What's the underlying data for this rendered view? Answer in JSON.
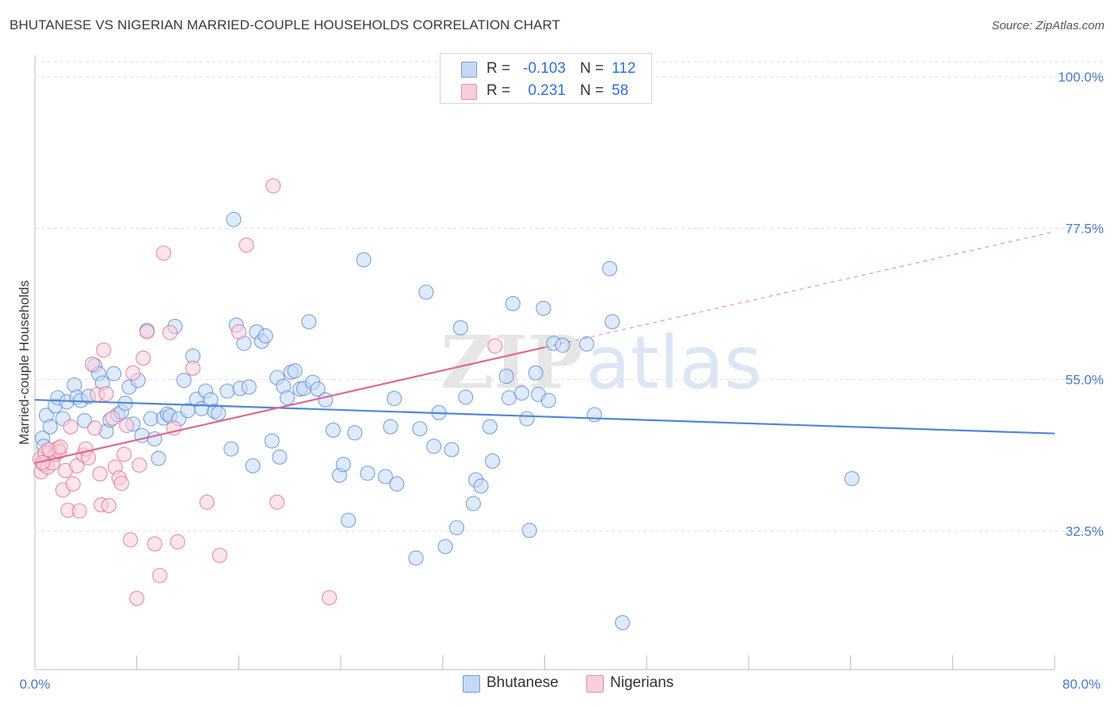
{
  "title": "BHUTANESE VS NIGERIAN MARRIED-COUPLE HOUSEHOLDS CORRELATION CHART",
  "source": "Source: ZipAtlas.com",
  "watermark": "ZIPatlas",
  "legend": {
    "rows": [
      {
        "r_label": "R =",
        "r_value": "-0.103",
        "n_label": "N =",
        "n_value": "112",
        "fill": "#c5d9f5",
        "stroke": "#6a9be0"
      },
      {
        "r_label": "R =",
        "r_value": "0.231",
        "n_label": "N =",
        "n_value": "58",
        "fill": "#f9cfdc",
        "stroke": "#e889a8"
      }
    ]
  },
  "bottom_legend": [
    {
      "label": "Bhutanese",
      "fill": "#c5d9f5",
      "stroke": "#6a9be0"
    },
    {
      "label": "Nigerians",
      "fill": "#f9cfdc",
      "stroke": "#e889a8"
    }
  ],
  "chart_data": {
    "type": "scatter",
    "title": "BHUTANESE VS NIGERIAN MARRIED-COUPLE HOUSEHOLDS CORRELATION CHART",
    "xlabel": "",
    "ylabel": "Married-couple Households",
    "xlim": [
      0,
      80
    ],
    "ylim": [
      10,
      103
    ],
    "x_tick_labels": [
      "0.0%",
      "80.0%"
    ],
    "y_tick_labels": [
      "100.0%",
      "77.5%",
      "55.0%",
      "32.5%"
    ],
    "y_ticks": [
      100,
      77.5,
      55,
      32.5
    ],
    "grid": true,
    "legend_position": "top-center",
    "series": [
      {
        "name": "Bhutanese",
        "color": "#4f86d6",
        "fill": "#c5d9f5",
        "trend": {
          "x": [
            0,
            80
          ],
          "y": [
            52.0,
            47.0
          ]
        },
        "points": [
          [
            0.6,
            46.3
          ],
          [
            0.9,
            49.7
          ],
          [
            1.2,
            48.0
          ],
          [
            1.6,
            51.1
          ],
          [
            1.8,
            52.3
          ],
          [
            2.2,
            49.2
          ],
          [
            2.5,
            51.7
          ],
          [
            3.1,
            54.2
          ],
          [
            3.3,
            52.4
          ],
          [
            3.6,
            51.9
          ],
          [
            3.9,
            48.9
          ],
          [
            4.2,
            52.5
          ],
          [
            4.7,
            57.1
          ],
          [
            5.0,
            55.9
          ],
          [
            5.3,
            54.5
          ],
          [
            5.6,
            47.3
          ],
          [
            5.9,
            49.0
          ],
          [
            6.2,
            55.9
          ],
          [
            6.5,
            49.8
          ],
          [
            6.8,
            50.2
          ],
          [
            7.1,
            51.5
          ],
          [
            7.4,
            53.9
          ],
          [
            7.7,
            48.4
          ],
          [
            8.1,
            54.9
          ],
          [
            8.4,
            46.7
          ],
          [
            8.8,
            62.3
          ],
          [
            9.1,
            49.2
          ],
          [
            9.4,
            46.2
          ],
          [
            9.7,
            43.3
          ],
          [
            10.1,
            49.3
          ],
          [
            10.4,
            49.9
          ],
          [
            10.6,
            49.6
          ],
          [
            11.0,
            62.9
          ],
          [
            11.3,
            49.2
          ],
          [
            11.7,
            54.9
          ],
          [
            12.0,
            50.4
          ],
          [
            12.4,
            58.5
          ],
          [
            12.7,
            52.1
          ],
          [
            13.1,
            50.7
          ],
          [
            13.4,
            53.3
          ],
          [
            13.8,
            52.0
          ],
          [
            14.1,
            50.3
          ],
          [
            14.4,
            50.0
          ],
          [
            15.1,
            53.3
          ],
          [
            15.4,
            44.7
          ],
          [
            15.6,
            78.8
          ],
          [
            15.8,
            63.1
          ],
          [
            16.1,
            53.7
          ],
          [
            16.4,
            60.4
          ],
          [
            16.8,
            53.9
          ],
          [
            17.1,
            42.2
          ],
          [
            17.4,
            62.1
          ],
          [
            17.8,
            60.7
          ],
          [
            18.1,
            61.5
          ],
          [
            18.6,
            45.9
          ],
          [
            19.0,
            55.3
          ],
          [
            19.2,
            43.5
          ],
          [
            19.5,
            54.0
          ],
          [
            19.8,
            52.3
          ],
          [
            20.1,
            56.1
          ],
          [
            20.4,
            56.3
          ],
          [
            20.8,
            53.6
          ],
          [
            21.1,
            53.7
          ],
          [
            21.5,
            63.6
          ],
          [
            21.8,
            54.6
          ],
          [
            22.2,
            53.6
          ],
          [
            22.8,
            52.0
          ],
          [
            23.4,
            47.5
          ],
          [
            23.9,
            40.8
          ],
          [
            24.2,
            42.4
          ],
          [
            24.6,
            34.1
          ],
          [
            25.1,
            47.1
          ],
          [
            25.8,
            72.8
          ],
          [
            26.1,
            41.1
          ],
          [
            27.5,
            40.6
          ],
          [
            27.9,
            48.0
          ],
          [
            28.2,
            52.2
          ],
          [
            28.4,
            39.5
          ],
          [
            29.9,
            28.5
          ],
          [
            30.2,
            47.7
          ],
          [
            30.7,
            68.0
          ],
          [
            31.3,
            45.1
          ],
          [
            31.7,
            50.1
          ],
          [
            32.2,
            30.2
          ],
          [
            32.7,
            44.6
          ],
          [
            33.1,
            33.0
          ],
          [
            33.4,
            62.7
          ],
          [
            33.8,
            52.4
          ],
          [
            34.4,
            36.6
          ],
          [
            34.6,
            40.1
          ],
          [
            35.0,
            39.2
          ],
          [
            35.7,
            48.0
          ],
          [
            35.9,
            42.9
          ],
          [
            37.0,
            55.5
          ],
          [
            37.2,
            52.3
          ],
          [
            37.5,
            66.3
          ],
          [
            38.2,
            53.0
          ],
          [
            38.6,
            49.2
          ],
          [
            38.8,
            32.6
          ],
          [
            39.3,
            56.0
          ],
          [
            39.5,
            52.8
          ],
          [
            39.9,
            65.6
          ],
          [
            40.3,
            51.9
          ],
          [
            40.7,
            60.4
          ],
          [
            41.4,
            60.1
          ],
          [
            43.3,
            60.3
          ],
          [
            43.9,
            49.8
          ],
          [
            45.1,
            71.5
          ],
          [
            45.3,
            63.6
          ],
          [
            46.1,
            18.9
          ],
          [
            64.1,
            40.3
          ],
          [
            0.7,
            45.1
          ]
        ]
      },
      {
        "name": "Nigerians",
        "color": "#e0678f",
        "fill": "#f9cfdc",
        "trend": {
          "x": [
            0,
            40
          ],
          "y": [
            42.6,
            59.8
          ]
        },
        "trend_dashed": {
          "x": [
            40,
            80
          ],
          "y": [
            59.8,
            77.0
          ]
        },
        "points": [
          [
            0.4,
            43.2
          ],
          [
            0.5,
            41.3
          ],
          [
            0.7,
            42.4
          ],
          [
            0.8,
            44.1
          ],
          [
            1.0,
            42.0
          ],
          [
            1.2,
            44.2
          ],
          [
            1.4,
            42.6
          ],
          [
            1.6,
            43.9
          ],
          [
            1.8,
            44.8
          ],
          [
            1.9,
            44.3
          ],
          [
            2.2,
            38.6
          ],
          [
            2.4,
            41.5
          ],
          [
            2.6,
            35.6
          ],
          [
            2.8,
            48.0
          ],
          [
            3.0,
            39.5
          ],
          [
            3.3,
            42.2
          ],
          [
            3.5,
            35.5
          ],
          [
            3.8,
            43.8
          ],
          [
            4.0,
            44.7
          ],
          [
            4.2,
            43.4
          ],
          [
            4.5,
            57.3
          ],
          [
            4.7,
            47.8
          ],
          [
            4.9,
            52.8
          ],
          [
            5.1,
            41.0
          ],
          [
            5.2,
            36.4
          ],
          [
            5.4,
            59.4
          ],
          [
            5.6,
            52.9
          ],
          [
            5.8,
            36.3
          ],
          [
            6.1,
            49.3
          ],
          [
            6.3,
            42.0
          ],
          [
            6.6,
            40.4
          ],
          [
            6.8,
            39.6
          ],
          [
            7.0,
            43.9
          ],
          [
            7.2,
            48.2
          ],
          [
            7.5,
            31.2
          ],
          [
            7.7,
            56.0
          ],
          [
            8.0,
            22.5
          ],
          [
            8.2,
            42.3
          ],
          [
            8.5,
            58.2
          ],
          [
            8.8,
            62.1
          ],
          [
            9.4,
            30.6
          ],
          [
            9.8,
            25.9
          ],
          [
            10.1,
            73.8
          ],
          [
            10.6,
            62.0
          ],
          [
            10.9,
            47.8
          ],
          [
            11.2,
            30.9
          ],
          [
            12.4,
            56.7
          ],
          [
            13.5,
            36.8
          ],
          [
            14.5,
            28.9
          ],
          [
            16.0,
            62.1
          ],
          [
            16.6,
            75.0
          ],
          [
            18.7,
            83.8
          ],
          [
            19.0,
            36.8
          ],
          [
            23.1,
            22.6
          ],
          [
            36.1,
            60.0
          ],
          [
            0.6,
            42.7
          ],
          [
            1.1,
            44.6
          ],
          [
            2.0,
            45.0
          ]
        ]
      }
    ]
  }
}
